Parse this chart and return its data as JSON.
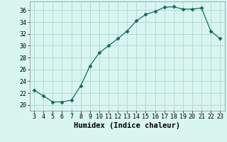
{
  "x": [
    3,
    4,
    5,
    6,
    7,
    8,
    9,
    10,
    11,
    12,
    13,
    14,
    15,
    16,
    17,
    18,
    19,
    20,
    21,
    22,
    23
  ],
  "y": [
    22.5,
    21.5,
    20.5,
    20.5,
    20.8,
    23.2,
    26.6,
    28.8,
    30.0,
    31.2,
    32.5,
    34.2,
    35.3,
    35.8,
    36.5,
    36.6,
    36.2,
    36.2,
    36.4,
    32.5,
    31.2
  ],
  "line_color": "#1a6b5a",
  "marker": "D",
  "marker_size": 2.5,
  "bg_color": "#d8f5f0",
  "grid_color": "#b0d8d0",
  "xlabel": "Humidex (Indice chaleur)",
  "ylim": [
    19,
    37.5
  ],
  "xlim": [
    2.5,
    23.5
  ],
  "yticks": [
    20,
    22,
    24,
    26,
    28,
    30,
    32,
    34,
    36
  ],
  "xticks": [
    3,
    4,
    5,
    6,
    7,
    8,
    9,
    10,
    11,
    12,
    13,
    14,
    15,
    16,
    17,
    18,
    19,
    20,
    21,
    22,
    23
  ],
  "xlabel_fontsize": 7.5,
  "tick_fontsize": 6.0
}
